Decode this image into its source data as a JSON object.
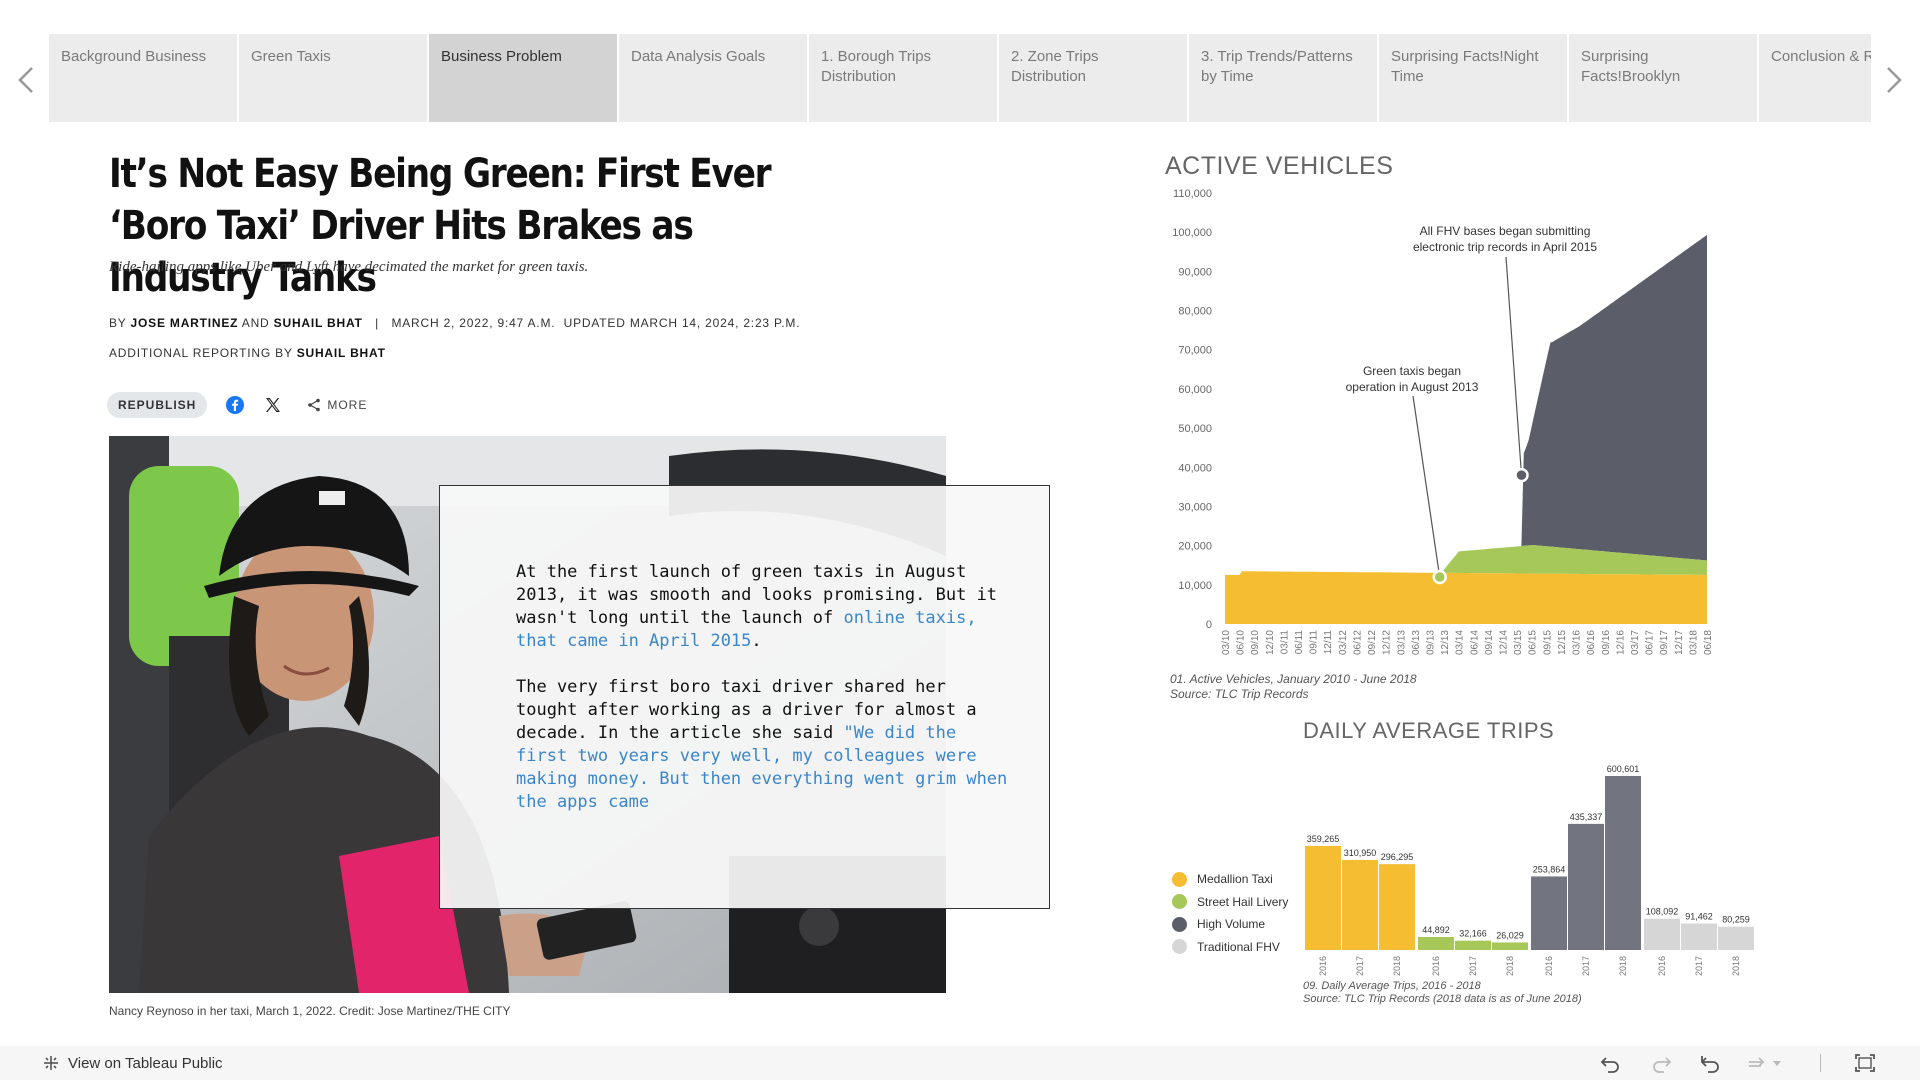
{
  "nav": {
    "tabs": [
      {
        "label": "Background Business"
      },
      {
        "label": "Green Taxis"
      },
      {
        "label": "Business Problem"
      },
      {
        "label": "Data Analysis Goals"
      },
      {
        "label": "1. Borough Trips Distribution"
      },
      {
        "label": "2. Zone Trips Distribution"
      },
      {
        "label": "3. Trip Trends/Patterns by Time"
      },
      {
        "label": "Surprising Facts!Night Time"
      },
      {
        "label": "Surprising Facts!Brooklyn"
      },
      {
        "label": "Conclusion & Recommendations"
      }
    ],
    "active_index": 2
  },
  "article": {
    "headline": "It’s Not Easy Being Green: First Ever ‘Boro Taxi’ Driver Hits Brakes as Industry Tanks",
    "deck": "Ride-hailing apps like Uber and Lyft have decimated the market for green taxis.",
    "by_prefix": "By",
    "author1": "Jose Martinez",
    "and": "and",
    "author2": "Suhail Bhat",
    "separator": "|",
    "dates": "March 2, 2022, 9:47 a.m.  Updated March 14, 2024, 2:23 p.m.",
    "additional_prefix": "Additional reporting by",
    "additional_author": "Suhail Bhat",
    "republish_label": "REPUBLISH",
    "more_label": "MORE",
    "caption": "Nancy Reynoso in her taxi, March 1, 2022. Credit: Jose Martinez/THE CITY"
  },
  "textbox": {
    "p1_a": "At the first launch of green taxis in August 2013, it was smooth and looks promising. But it wasn't long until the launch of ",
    "p1_link": "online taxis, that came in April 2015",
    "p1_b": ".",
    "p2_a": "The very first boro taxi driver shared her tought after working as a driver for almost a decade. In the article she said ",
    "p2_quote": "\"We did the first two years very well, my colleagues were making money. But then everything went grim when the apps came"
  },
  "chart_data": [
    {
      "type": "area",
      "title": "ACTIVE VEHICLES",
      "ylim": [
        0,
        110000
      ],
      "y_ticks": [
        "110,000",
        "100,000",
        "90,000",
        "80,000",
        "70,000",
        "60,000",
        "50,000",
        "40,000",
        "30,000",
        "20,000",
        "10,000",
        "0"
      ],
      "x_ticks": [
        "03/10",
        "06/10",
        "09/10",
        "12/10",
        "03/11",
        "06/11",
        "09/11",
        "12/11",
        "03/12",
        "06/12",
        "09/12",
        "12/12",
        "03/13",
        "06/13",
        "09/13",
        "12/13",
        "03/14",
        "06/14",
        "09/14",
        "12/14",
        "03/15",
        "06/15",
        "09/15",
        "12/15",
        "03/16",
        "06/16",
        "09/16",
        "12/16",
        "03/17",
        "06/17",
        "09/17",
        "12/17",
        "03/18",
        "06/18"
      ],
      "annotations": [
        {
          "text_line1": "All FHV bases began submitting",
          "text_line2": "electronic trip records in April 2015",
          "x_index": 20.3,
          "y": 38000
        },
        {
          "text_line1": "Green taxis began",
          "text_line2": "operation in August 2013",
          "x_index": 14.7,
          "y": 12000
        }
      ],
      "series": [
        {
          "name": "Medallion Taxi",
          "color": "#f5be32"
        },
        {
          "name": "Street Hail Livery",
          "color": "#a6c858"
        },
        {
          "name": "High Volume",
          "color": "#5b5e68"
        }
      ],
      "note_line1": "01. Active Vehicles, January 2010 - June 2018",
      "note_line2": "Source: TLC Trip Records"
    },
    {
      "type": "bar",
      "title": "DAILY AVERAGE TRIPS",
      "groups": [
        {
          "name": "Medallion Taxi",
          "color": "#f5be32",
          "years": [
            "2016",
            "2017",
            "2018"
          ],
          "values": [
            359265,
            310950,
            296295
          ],
          "labels": [
            "359,265",
            "310,950",
            "296,295"
          ]
        },
        {
          "name": "Street Hail Livery",
          "color": "#a6c858",
          "years": [
            "2016",
            "2017",
            "2018"
          ],
          "values": [
            44892,
            32166,
            26029
          ],
          "labels": [
            "44,892",
            "32,166",
            "26,029"
          ]
        },
        {
          "name": "High Volume",
          "color": "#727480",
          "years": [
            "2016",
            "2017",
            "2018"
          ],
          "values": [
            253864,
            435337,
            600601
          ],
          "labels": [
            "253,864",
            "435,337",
            "600,601"
          ]
        },
        {
          "name": "Traditional FHV",
          "color": "#d6d6d6",
          "years": [
            "2016",
            "2017",
            "2018"
          ],
          "values": [
            108092,
            91462,
            80259
          ],
          "labels": [
            "108,092",
            "91,462",
            "80,259"
          ]
        }
      ],
      "legend": [
        {
          "name": "Medallion Taxi",
          "color": "#f5be32"
        },
        {
          "name": "Street Hail Livery",
          "color": "#a6c858"
        },
        {
          "name": "High Volume",
          "color": "#5b5e68"
        },
        {
          "name": "Traditional FHV",
          "color": "#d6d6d6"
        }
      ],
      "note_line1": "09. Daily Average Trips, 2016 - 2018",
      "note_line2": "Source: TLC Trip Records (2018 data is as of June 2018)"
    }
  ],
  "footer": {
    "tableau_link": "View on Tableau Public"
  }
}
